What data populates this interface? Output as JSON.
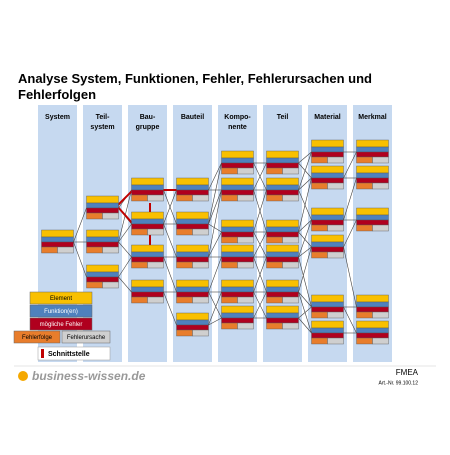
{
  "header": {
    "title": "Analyse System, Funktionen, Fehler, Fehlerursachen und Fehlerfolgen"
  },
  "columns": [
    {
      "lines": [
        "System"
      ]
    },
    {
      "lines": [
        "Teil-",
        "system"
      ]
    },
    {
      "lines": [
        "Bau-",
        "gruppe"
      ]
    },
    {
      "lines": [
        "Bauteil"
      ]
    },
    {
      "lines": [
        "Kompo-",
        "nente"
      ]
    },
    {
      "lines": [
        "Teil"
      ]
    },
    {
      "lines": [
        "Material"
      ]
    },
    {
      "lines": [
        "Merkmal"
      ]
    }
  ],
  "legend": {
    "element": "Element",
    "function": "Funktion(en)",
    "failure": "mögliche Fehler",
    "effect": "Fehlerfolge",
    "cause": "Fehlerursache",
    "interface": "Schnittstelle"
  },
  "footer": {
    "brand": "business-wissen.de",
    "product": "FMEA",
    "article": "Art.-Nr. 99.100.12"
  }
}
